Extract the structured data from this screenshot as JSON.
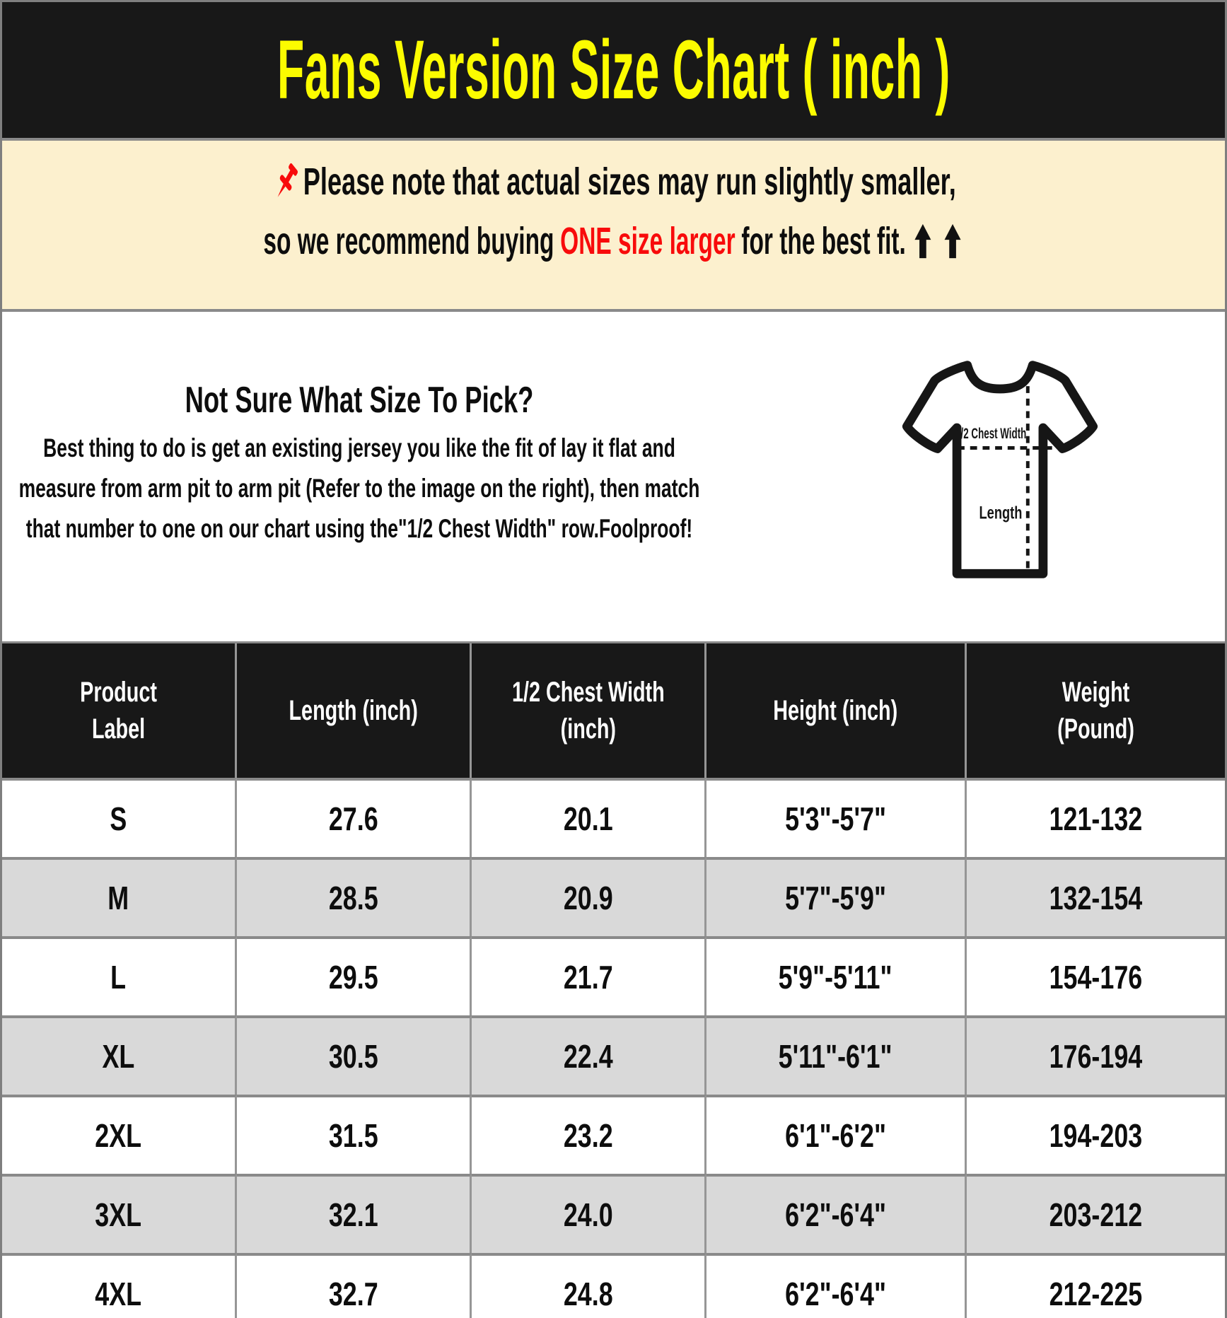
{
  "title_bar": {
    "title": "Fans Version Size Chart ( inch )",
    "background_color": "#181818",
    "text_color": "#fcfc00"
  },
  "notice": {
    "background_color": "#fcf0ce",
    "line1": "Please note that actual sizes may run slightly smaller,",
    "line2_prefix": "so we recommend buying",
    "line2_highlight": "ONE size larger",
    "line2_suffix": "for the best fit.",
    "highlight_color": "#f80b0b",
    "pin_icon": "pushpin-icon",
    "arrow_icon": "up-arrow-icon"
  },
  "size_help": {
    "heading": "Not Sure What Size To Pick?",
    "body": "Best thing to do is get an existing jersey you like the fit of lay it flat and measure from arm pit to arm pit (Refer to the image on the right), then match that number to one on our chart using the\"1/2 Chest Width\" row.Foolproof!",
    "diagram_labels": {
      "chest": "1/2 Chest Width",
      "length": "Length"
    }
  },
  "chart_data": {
    "type": "table",
    "title": "Fans Version Size Chart ( inch )",
    "columns": [
      "Product Label",
      "Length (inch)",
      "1/2 Chest Width (inch)",
      "Height (inch)",
      "Weight (Pound)"
    ],
    "header_lines": [
      [
        "Product",
        "Label"
      ],
      [
        "Length (inch)"
      ],
      [
        "1/2 Chest Width",
        "(inch)"
      ],
      [
        "Height (inch)"
      ],
      [
        "Weight",
        "(Pound)"
      ]
    ],
    "rows": [
      [
        "S",
        "27.6",
        "20.1",
        "5'3\"-5'7\"",
        "121-132"
      ],
      [
        "M",
        "28.5",
        "20.9",
        "5'7\"-5'9\"",
        "132-154"
      ],
      [
        "L",
        "29.5",
        "21.7",
        "5'9\"-5'11\"",
        "154-176"
      ],
      [
        "XL",
        "30.5",
        "22.4",
        "5'11\"-6'1\"",
        "176-194"
      ],
      [
        "2XL",
        "31.5",
        "23.2",
        "6'1\"-6'2\"",
        "194-203"
      ],
      [
        "3XL",
        "32.1",
        "24.0",
        "6'2\"-6'4\"",
        "203-212"
      ],
      [
        "4XL",
        "32.7",
        "24.8",
        "6'2\"-6'4\"",
        "212-225"
      ]
    ],
    "styles": {
      "header_bg": "#181818",
      "header_text": "#ffffff",
      "row_alt_bg": "#d9d9d9",
      "grid_line": "#8a8a8a"
    }
  }
}
